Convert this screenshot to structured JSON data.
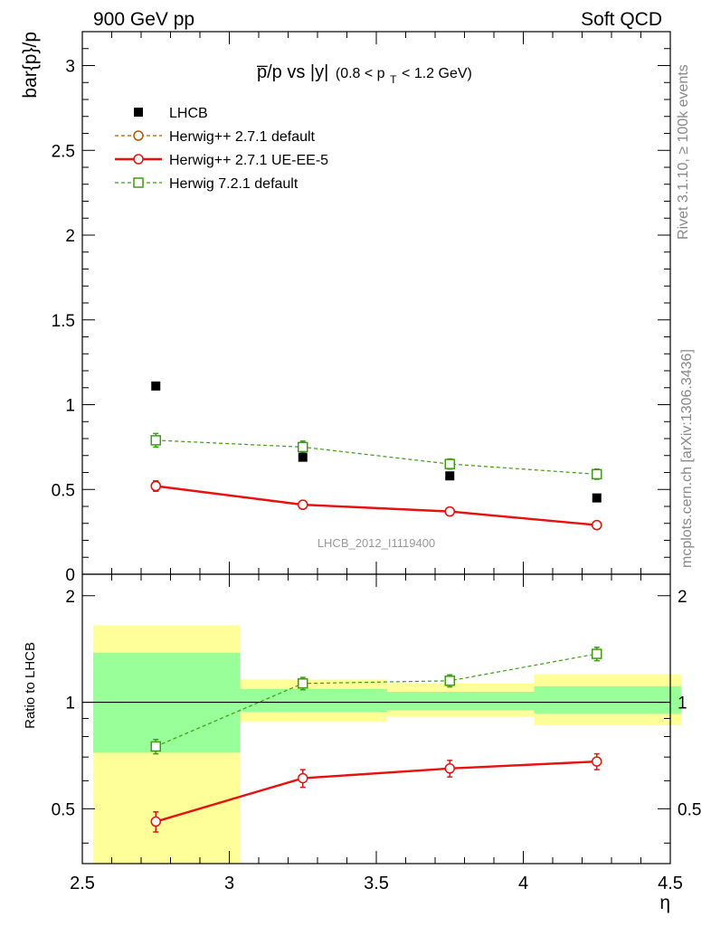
{
  "header": {
    "left": "900 GeV pp",
    "right": "Soft QCD"
  },
  "side_labels": {
    "rivet": "Rivet 3.1.10, ≥ 100k events",
    "mcplots": "mcplots.cern.ch [arXiv:1306.3436]"
  },
  "colors": {
    "lhcb": "#000000",
    "herwigpp_default": "#b35900",
    "herwigpp_ueee5": "#e8110e",
    "herwig721": "#3c9d10",
    "band_yellow": "#ffff99",
    "band_green": "#99ff99"
  },
  "chart_data": [
    {
      "type": "scatter",
      "title": "p̅/p vs |y|",
      "title_parts": {
        "main": "p̅/p vs |y|",
        "range_pre": "(0.8 < p",
        "range_sub": "T",
        "range_post": " < 1.2 GeV)"
      },
      "ylabel": "bar{p}/p",
      "watermark": "LHCB_2012_I1119400",
      "xlim": [
        2.5,
        4.5
      ],
      "ylim": [
        0,
        3.2
      ],
      "yticks": [
        0,
        0.5,
        1,
        1.5,
        2,
        2.5,
        3
      ],
      "ytick_labels": [
        "0",
        "0.5",
        "1",
        "1.5",
        "2",
        "2.5",
        "3"
      ],
      "legend_position": "top-left",
      "legend": [
        "LHCB",
        "Herwig++ 2.7.1 default",
        "Herwig++ 2.7.1 UE-EE-5",
        "Herwig 7.2.1 default"
      ],
      "series": [
        {
          "name": "LHCB",
          "style": "data",
          "x": [
            2.75,
            3.25,
            3.75,
            4.25
          ],
          "y": [
            1.11,
            0.69,
            0.58,
            0.45
          ]
        },
        {
          "name": "Herwig++ 2.7.1 default",
          "style": "dashed-circle",
          "x": [
            2.75,
            3.25,
            3.75,
            4.25
          ],
          "y": [
            0.52,
            0.41,
            0.37,
            0.29
          ],
          "err": [
            0.03,
            0.02,
            0.015,
            0.015
          ]
        },
        {
          "name": "Herwig++ 2.7.1 UE-EE-5",
          "style": "solid-circle",
          "x": [
            2.75,
            3.25,
            3.75,
            4.25
          ],
          "y": [
            0.52,
            0.41,
            0.37,
            0.29
          ],
          "err": [
            0.03,
            0.02,
            0.015,
            0.015
          ]
        },
        {
          "name": "Herwig 7.2.1 default",
          "style": "dashed-square",
          "x": [
            2.75,
            3.25,
            3.75,
            4.25
          ],
          "y": [
            0.79,
            0.75,
            0.65,
            0.59
          ],
          "err": [
            0.04,
            0.035,
            0.03,
            0.03
          ]
        }
      ]
    },
    {
      "type": "scatter",
      "ylabel": "Ratio to LHCB",
      "xlabel": "η",
      "log_y": true,
      "xlim": [
        2.5,
        4.5
      ],
      "ylim": [
        0.35,
        2.3
      ],
      "xticks": [
        2.5,
        3,
        3.5,
        4,
        4.5
      ],
      "xtick_labels": [
        "2.5",
        "3",
        "3.5",
        "4",
        "4.5"
      ],
      "yticks": [
        0.5,
        1,
        2
      ],
      "ytick_labels": [
        "0.5",
        "1",
        "2"
      ],
      "bands": [
        {
          "x0": 2.5,
          "x1": 3.0,
          "yellow": [
            0.35,
            1.65
          ],
          "green": [
            0.72,
            1.38
          ]
        },
        {
          "x0": 3.0,
          "x1": 3.5,
          "yellow": [
            0.88,
            1.16
          ],
          "green": [
            0.94,
            1.09
          ]
        },
        {
          "x0": 3.5,
          "x1": 4.0,
          "yellow": [
            0.91,
            1.13
          ],
          "green": [
            0.95,
            1.07
          ]
        },
        {
          "x0": 4.0,
          "x1": 4.5,
          "yellow": [
            0.86,
            1.2
          ],
          "green": [
            0.93,
            1.11
          ]
        }
      ],
      "series": [
        {
          "name": "Herwig++ 2.7.1 UE-EE-5",
          "style": "solid-circle",
          "x": [
            2.75,
            3.25,
            3.75,
            4.25
          ],
          "y": [
            0.46,
            0.61,
            0.65,
            0.68
          ],
          "err": [
            0.03,
            0.035,
            0.035,
            0.035
          ]
        },
        {
          "name": "Herwig 7.2.1 default",
          "style": "dashed-square",
          "x": [
            2.75,
            3.25,
            3.75,
            4.25
          ],
          "y": [
            0.75,
            1.13,
            1.15,
            1.37
          ],
          "err": [
            0.035,
            0.045,
            0.045,
            0.06
          ]
        }
      ]
    }
  ]
}
